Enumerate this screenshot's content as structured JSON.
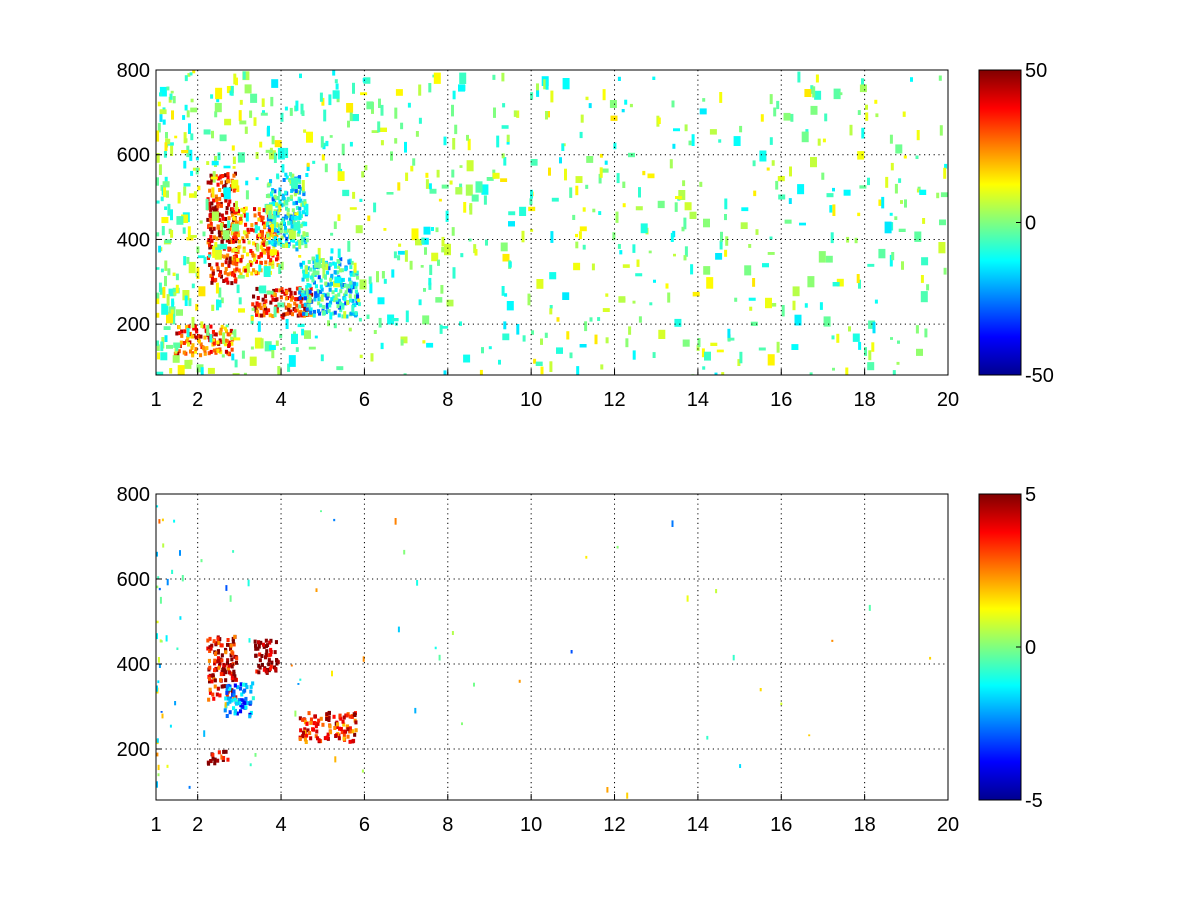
{
  "chart_data": [
    {
      "type": "heatmap",
      "title": "",
      "xlabel": "",
      "ylabel": "",
      "xlim": [
        1,
        20
      ],
      "ylim": [
        80,
        800
      ],
      "xticks": [
        "1",
        "2",
        "4",
        "6",
        "8",
        "10",
        "12",
        "14",
        "16",
        "18",
        "20"
      ],
      "yticks": [
        "200",
        "400",
        "600",
        "800"
      ],
      "grid": true,
      "colormap": "jet",
      "colorbar": {
        "range": [
          -50,
          50
        ],
        "ticks": [
          "50",
          "0",
          "-50"
        ]
      },
      "features": [
        {
          "x_range": [
            2.2,
            2.9
          ],
          "y_range": [
            300,
            560
          ],
          "value": 40
        },
        {
          "x_range": [
            2.8,
            3.9
          ],
          "y_range": [
            320,
            480
          ],
          "value": 25
        },
        {
          "x_range": [
            3.2,
            4.7
          ],
          "y_range": [
            220,
            290
          ],
          "value": 35
        },
        {
          "x_range": [
            1.4,
            2.8
          ],
          "y_range": [
            130,
            200
          ],
          "value": 30
        },
        {
          "x_range": [
            4.4,
            5.8
          ],
          "y_range": [
            220,
            360
          ],
          "value": -15
        },
        {
          "x_range": [
            3.6,
            4.6
          ],
          "y_range": [
            380,
            560
          ],
          "value": -12
        }
      ]
    },
    {
      "type": "heatmap",
      "title": "",
      "xlabel": "",
      "ylabel": "",
      "xlim": [
        1,
        20
      ],
      "ylim": [
        80,
        800
      ],
      "xticks": [
        "1",
        "2",
        "4",
        "6",
        "8",
        "10",
        "12",
        "14",
        "16",
        "18",
        "20"
      ],
      "yticks": [
        "200",
        "400",
        "600",
        "800"
      ],
      "grid": true,
      "colormap": "jet",
      "colorbar": {
        "range": [
          -5,
          5
        ],
        "ticks": [
          "5",
          "0",
          "-5"
        ]
      },
      "features": [
        {
          "x_range": [
            2.2,
            2.9
          ],
          "y_range": [
            320,
            470
          ],
          "value": 4
        },
        {
          "x_range": [
            3.3,
            3.9
          ],
          "y_range": [
            380,
            460
          ],
          "value": 5
        },
        {
          "x_range": [
            2.2,
            2.7
          ],
          "y_range": [
            170,
            200
          ],
          "value": 5
        },
        {
          "x_range": [
            4.4,
            5.8
          ],
          "y_range": [
            220,
            290
          ],
          "value": 3.5
        },
        {
          "x_range": [
            2.6,
            3.3
          ],
          "y_range": [
            280,
            360
          ],
          "value": -2.5
        }
      ]
    }
  ]
}
